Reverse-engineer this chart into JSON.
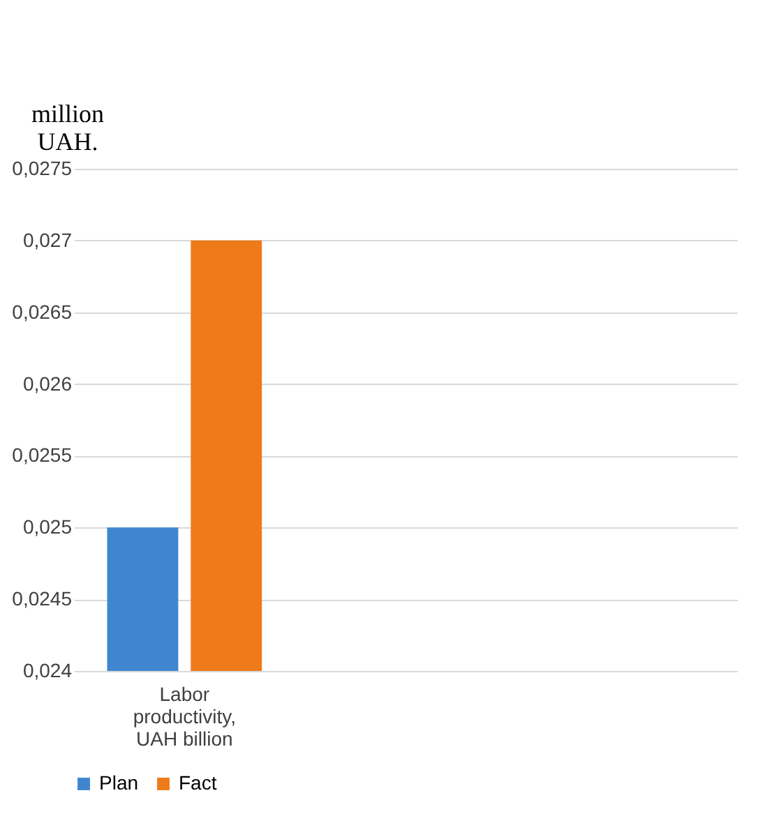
{
  "chart_data": {
    "type": "bar",
    "ylabel": "million UAH.",
    "categories": [
      "Labor productivity, UAH billion",
      null,
      null
    ],
    "series": [
      {
        "name": "Plan",
        "color": "#3f86cf",
        "values": [
          0.025,
          null,
          null
        ]
      },
      {
        "name": "Fact",
        "color": "#ef7a1a",
        "values": [
          0.027,
          null,
          null
        ]
      }
    ],
    "ylim": [
      0.024,
      0.0275
    ],
    "yticks": [
      {
        "value": 0.024,
        "label": "0,024"
      },
      {
        "value": 0.0245,
        "label": "0,0245"
      },
      {
        "value": 0.025,
        "label": "0,025"
      },
      {
        "value": 0.0255,
        "label": "0,0255"
      },
      {
        "value": 0.026,
        "label": "0,026"
      },
      {
        "value": 0.0265,
        "label": "0,0265"
      },
      {
        "value": 0.027,
        "label": "0,027"
      },
      {
        "value": 0.0275,
        "label": "0,0275"
      }
    ],
    "grid": "y",
    "legend": "bottom"
  }
}
